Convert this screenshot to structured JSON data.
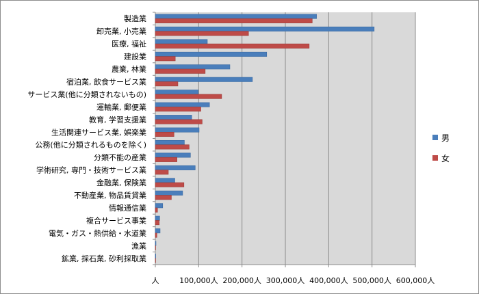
{
  "chart_data": {
    "type": "bar",
    "orientation": "horizontal",
    "categories": [
      "製造業",
      "卸売業, 小売業",
      "医療, 福祉",
      "建設業",
      "農業, 林業",
      "宿泊業, 飲食サービス業",
      "サービス業(他に分類されないもの)",
      "運輸業, 郵便業",
      "教育, 学習支援業",
      "生活関連サービス業, 娯楽業",
      "公務(他に分類されるものを除く)",
      "分類不能の産業",
      "学術研究, 専門・技術サービス業",
      "金融業, 保険業",
      "不動産業, 物品賃貸業",
      "情報通信業",
      "複合サービス事業",
      "電気・ガス・熱供給・水道業",
      "漁業",
      "鉱業, 採石業, 砂利採取業"
    ],
    "series": [
      {
        "name": "男",
        "color": "#4a7ebb",
        "values": [
          372000,
          505000,
          120000,
          257000,
          172000,
          224000,
          99000,
          125000,
          84000,
          101000,
          67000,
          81000,
          92000,
          45000,
          63000,
          17000,
          10000,
          11000,
          1500,
          1000
        ]
      },
      {
        "name": "女",
        "color": "#be4b48",
        "values": [
          362000,
          215000,
          355000,
          46000,
          115000,
          52000,
          153000,
          105000,
          108000,
          43000,
          78000,
          50000,
          30000,
          66000,
          37000,
          5000,
          9000,
          3500,
          500,
          300
        ]
      }
    ],
    "xlim": [
      0,
      600000
    ],
    "xticks": [
      "人",
      "100,000人",
      "200,000人",
      "300,000人",
      "400,000人",
      "500,000人",
      "600,000人"
    ],
    "grid": true,
    "legend_position": "right"
  }
}
